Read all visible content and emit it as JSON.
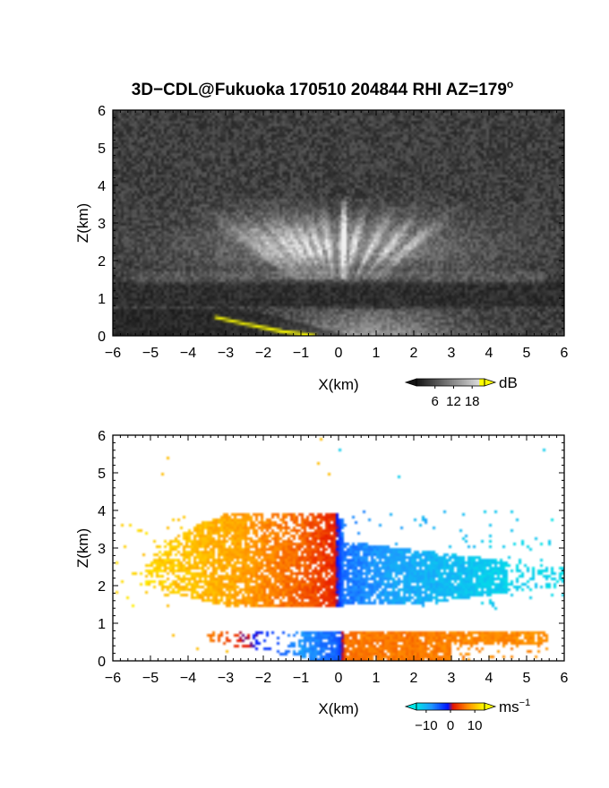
{
  "figure": {
    "title_main": "3D−CDL@Fukuoka 170510 204844 RHI AZ=179",
    "title_degree": "o"
  },
  "chart_data": [
    {
      "type": "heatmap",
      "quantity": "reflectivity (grayscale)",
      "xlabel": "X(km)",
      "ylabel": "Z(km)",
      "xlim": [
        -6,
        6
      ],
      "ylim": [
        0,
        6
      ],
      "xticks": [
        "−6",
        "−5",
        "−4",
        "−3",
        "−2",
        "−1",
        "0",
        "1",
        "2",
        "3",
        "4",
        "5",
        "6"
      ],
      "yticks": [
        "0",
        "1",
        "2",
        "3",
        "4",
        "5",
        "6"
      ],
      "colorbar": {
        "unit": "dB",
        "ticks": [
          "6",
          "12",
          "18"
        ],
        "values": [
          6,
          12,
          18
        ],
        "range": [
          0,
          22
        ]
      },
      "features": {
        "upper_layer_z_km": [
          1.5,
          3.6
        ],
        "dark_gap_z_km": [
          0.75,
          1.4
        ],
        "lower_layer_z_km": [
          0.0,
          0.75
        ],
        "ground_line_yellow": [
          [
            -3.3,
            0.5
          ],
          [
            -2.5,
            0.32
          ],
          [
            -1.5,
            0.12
          ],
          [
            -0.6,
            0.0
          ]
        ],
        "ground_line_color": "#ffff00"
      }
    },
    {
      "type": "heatmap",
      "quantity": "radial velocity",
      "xlabel": "X(km)",
      "ylabel": "Z(km)",
      "xlim": [
        -6,
        6
      ],
      "ylim": [
        0,
        6
      ],
      "xticks": [
        "−6",
        "−5",
        "−4",
        "−3",
        "−2",
        "−1",
        "0",
        "1",
        "2",
        "3",
        "4",
        "5",
        "6"
      ],
      "yticks": [
        "0",
        "1",
        "2",
        "3",
        "4",
        "5",
        "6"
      ],
      "colorbar": {
        "unit": "ms",
        "unit_exponent": "−1",
        "ticks": [
          "−10",
          "0",
          "10"
        ],
        "values": [
          -10,
          0,
          10
        ],
        "range": [
          -14,
          14
        ]
      },
      "features": {
        "upper_layer_z_km": [
          1.4,
          4.0
        ],
        "lower_layer_z_km": [
          0.0,
          0.8
        ],
        "upper_velocity_at_x": [
          [
            -5.5,
            12
          ],
          [
            -3,
            9
          ],
          [
            -1,
            5
          ],
          [
            -0.1,
            2
          ],
          [
            0.1,
            -6
          ],
          [
            1.5,
            -9
          ],
          [
            4,
            -12
          ],
          [
            6,
            -13
          ]
        ],
        "lower_velocity_at_x": [
          [
            -3.4,
            6
          ],
          [
            -1,
            -8
          ],
          [
            0,
            -5
          ],
          [
            0.2,
            6
          ],
          [
            2,
            6
          ],
          [
            4,
            7
          ],
          [
            5.6,
            7
          ]
        ]
      }
    }
  ]
}
